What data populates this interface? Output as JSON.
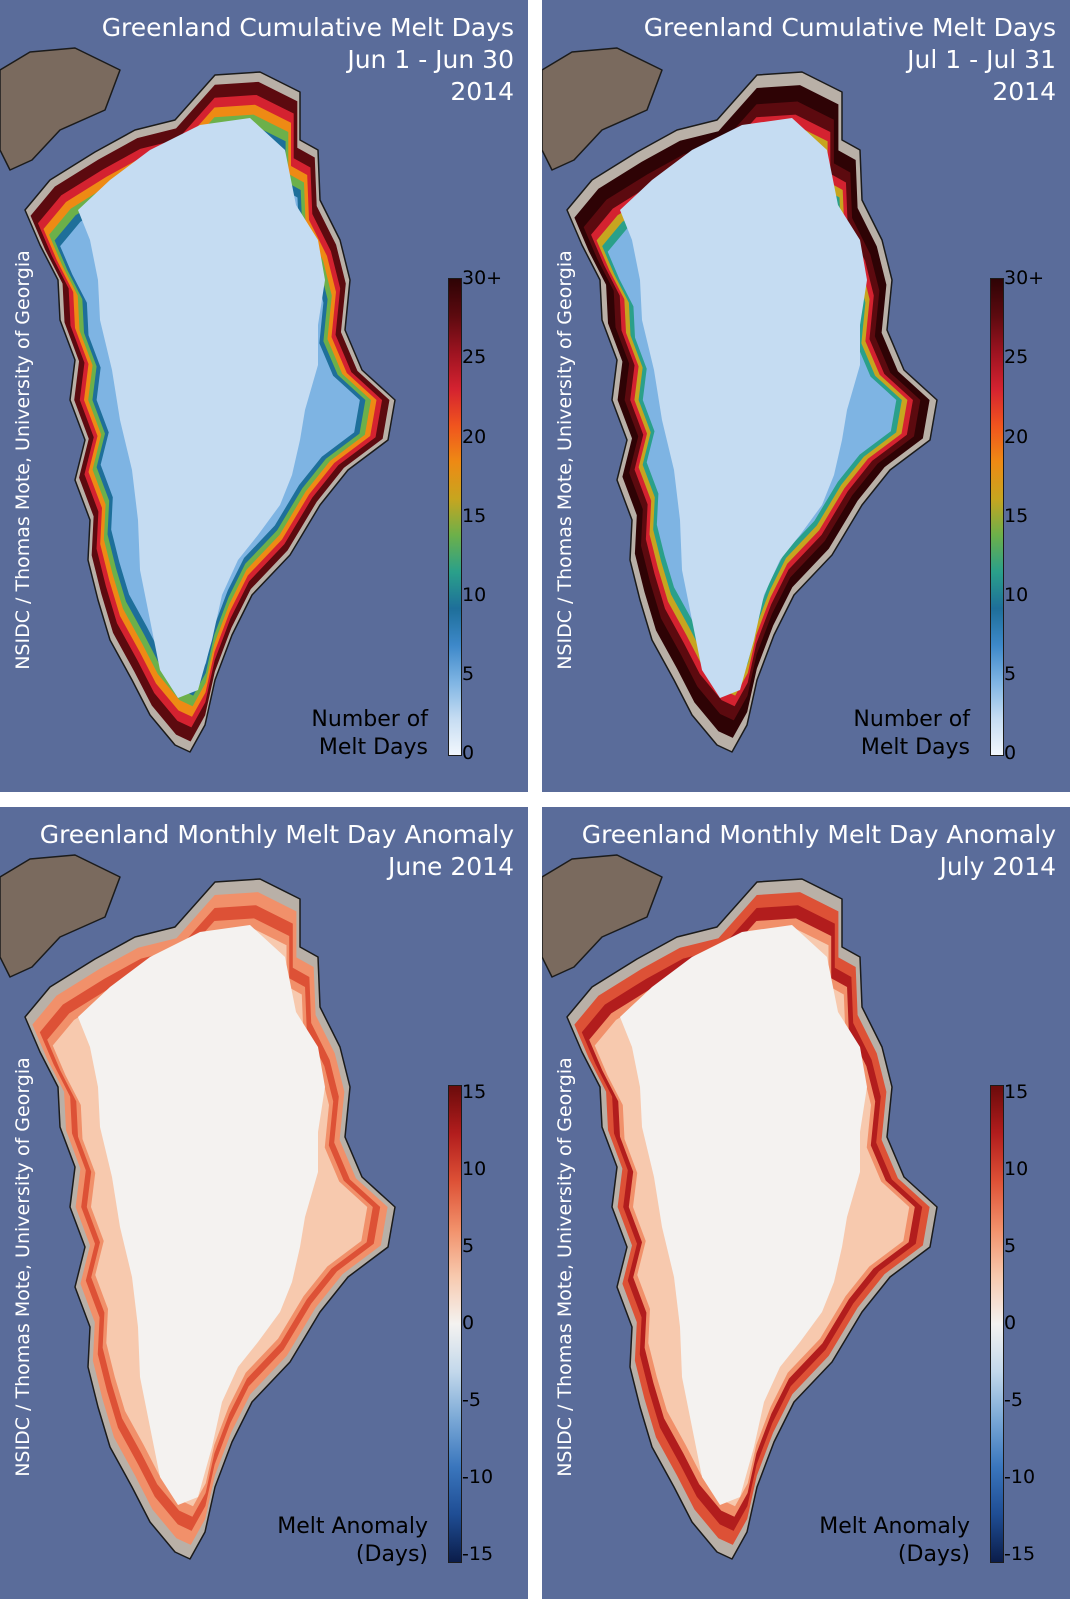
{
  "panels": [
    {
      "title_line1": "Greenland Cumulative Melt Days",
      "title_line2": "Jun 1 - Jun 30",
      "title_line3": "2014",
      "credit": "NSIDC / Thomas Mote, University of Georgia",
      "legend_line1": "Number of",
      "legend_line2": "Melt Days",
      "colorbar_ticks": [
        "30+",
        "25",
        "20",
        "15",
        "10",
        "5",
        "0"
      ],
      "scale": "cumulative"
    },
    {
      "title_line1": "Greenland Cumulative Melt Days",
      "title_line2": "Jul 1 - Jul 31",
      "title_line3": "2014",
      "credit": "NSIDC / Thomas Mote, University of Georgia",
      "legend_line1": "Number of",
      "legend_line2": "Melt Days",
      "colorbar_ticks": [
        "30+",
        "25",
        "20",
        "15",
        "10",
        "5",
        "0"
      ],
      "scale": "cumulative"
    },
    {
      "title_line1": "Greenland Monthly Melt Day Anomaly",
      "title_line2": "June 2014",
      "title_line3": "",
      "credit": "NSIDC / Thomas Mote, University of Georgia",
      "legend_line1": "Melt Anomaly",
      "legend_line2": "(Days)",
      "colorbar_ticks": [
        "15",
        "10",
        "5",
        "0",
        "-5",
        "-10",
        "-15"
      ],
      "scale": "anomaly"
    },
    {
      "title_line1": "Greenland Monthly Melt Day Anomaly",
      "title_line2": "July 2014",
      "title_line3": "",
      "credit": "NSIDC / Thomas Mote, University of Georgia",
      "legend_line1": "Melt Anomaly",
      "legend_line2": "(Days)",
      "colorbar_ticks": [
        "15",
        "10",
        "5",
        "0",
        "-5",
        "-10",
        "-15"
      ],
      "scale": "anomaly"
    }
  ],
  "colors": {
    "ocean": "#5a6c9a",
    "land": "#b9b0a7",
    "ellesmere": "#7a6a5e",
    "cumulative_scale": [
      "#f2f7fd",
      "#c5dcf2",
      "#7eb4e3",
      "#3d88c9",
      "#1e6f9a",
      "#2aa08a",
      "#6cb04a",
      "#c7a51f",
      "#ee8a14",
      "#f0541e",
      "#d42230",
      "#9c1320",
      "#5c0a0f",
      "#2e0305"
    ],
    "anomaly_scale": [
      "#0b1d4a",
      "#1f4d94",
      "#3a76bd",
      "#7aa8d6",
      "#c3d8eb",
      "#f4f2f0",
      "#f7c9ae",
      "#f1906a",
      "#dd5136",
      "#b21d1d",
      "#6b0b0b"
    ]
  }
}
